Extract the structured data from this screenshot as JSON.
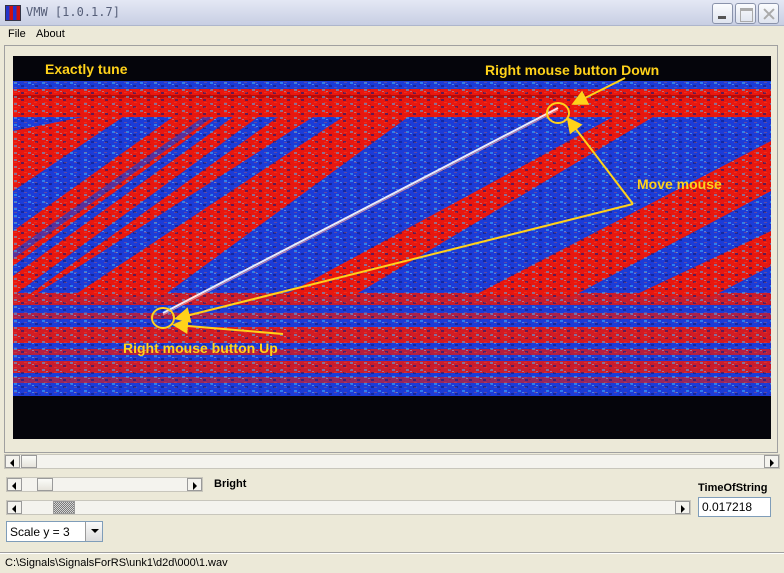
{
  "window": {
    "title": "VMW [1.0.1.7]"
  },
  "menu": {
    "items": [
      "File",
      "About"
    ]
  },
  "annotations": {
    "top_left": "Exactly tune",
    "top_right": "Right mouse button Down",
    "middle_right": "Move mouse",
    "bottom": "Right mouse button Up"
  },
  "controls": {
    "bright_label": "Bright",
    "time_of_string_label": "TimeOfString",
    "time_of_string_value": "0.017218",
    "scale_select": {
      "selected": "Scale y = 3"
    }
  },
  "status": {
    "path": "C:\\Signals\\SignalsForRS\\unk1\\d2d\\000\\1.wav"
  },
  "colors": {
    "signal_red": "#e8170f",
    "signal_blue": "#1b3cd8",
    "background_dark": "#05050b",
    "annotation_yellow": "#ffd21a"
  }
}
